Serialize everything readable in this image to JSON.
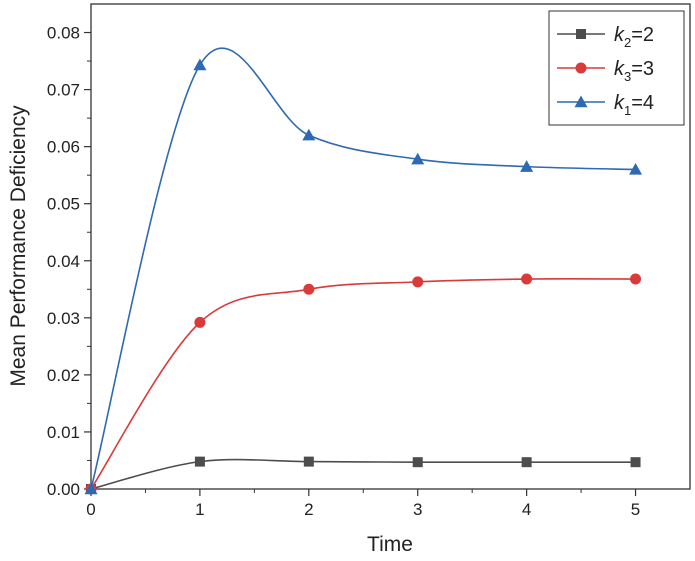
{
  "chart_data": {
    "type": "line",
    "xlabel": "Time",
    "ylabel": "Mean Performance Deficiency",
    "xlim": [
      0,
      5.5
    ],
    "ylim": [
      0,
      0.085
    ],
    "xticks": [
      "0",
      "1",
      "2",
      "3",
      "4",
      "5"
    ],
    "yticks": [
      "0.00",
      "0.01",
      "0.02",
      "0.03",
      "0.04",
      "0.05",
      "0.06",
      "0.07",
      "0.08"
    ],
    "grid": false,
    "legend_position": "top-right",
    "x": [
      0,
      1,
      2,
      3,
      4,
      5
    ],
    "series": [
      {
        "name_main": "k",
        "name_sub": "2",
        "name_rest": "=2",
        "color": "#4d4d4d",
        "marker": "square",
        "values": [
          0.0,
          0.0048,
          0.0048,
          0.0047,
          0.0047,
          0.0047
        ]
      },
      {
        "name_main": "k",
        "name_sub": "3",
        "name_rest": "=3",
        "color": "#d93a3a",
        "marker": "circle",
        "values": [
          0.0,
          0.0292,
          0.035,
          0.0363,
          0.0368,
          0.0368
        ]
      },
      {
        "name_main": "k",
        "name_sub": "1",
        "name_rest": "=4",
        "color": "#2e69b3",
        "marker": "triangle",
        "values": [
          0.0,
          0.0743,
          0.062,
          0.0578,
          0.0565,
          0.056
        ]
      }
    ]
  }
}
